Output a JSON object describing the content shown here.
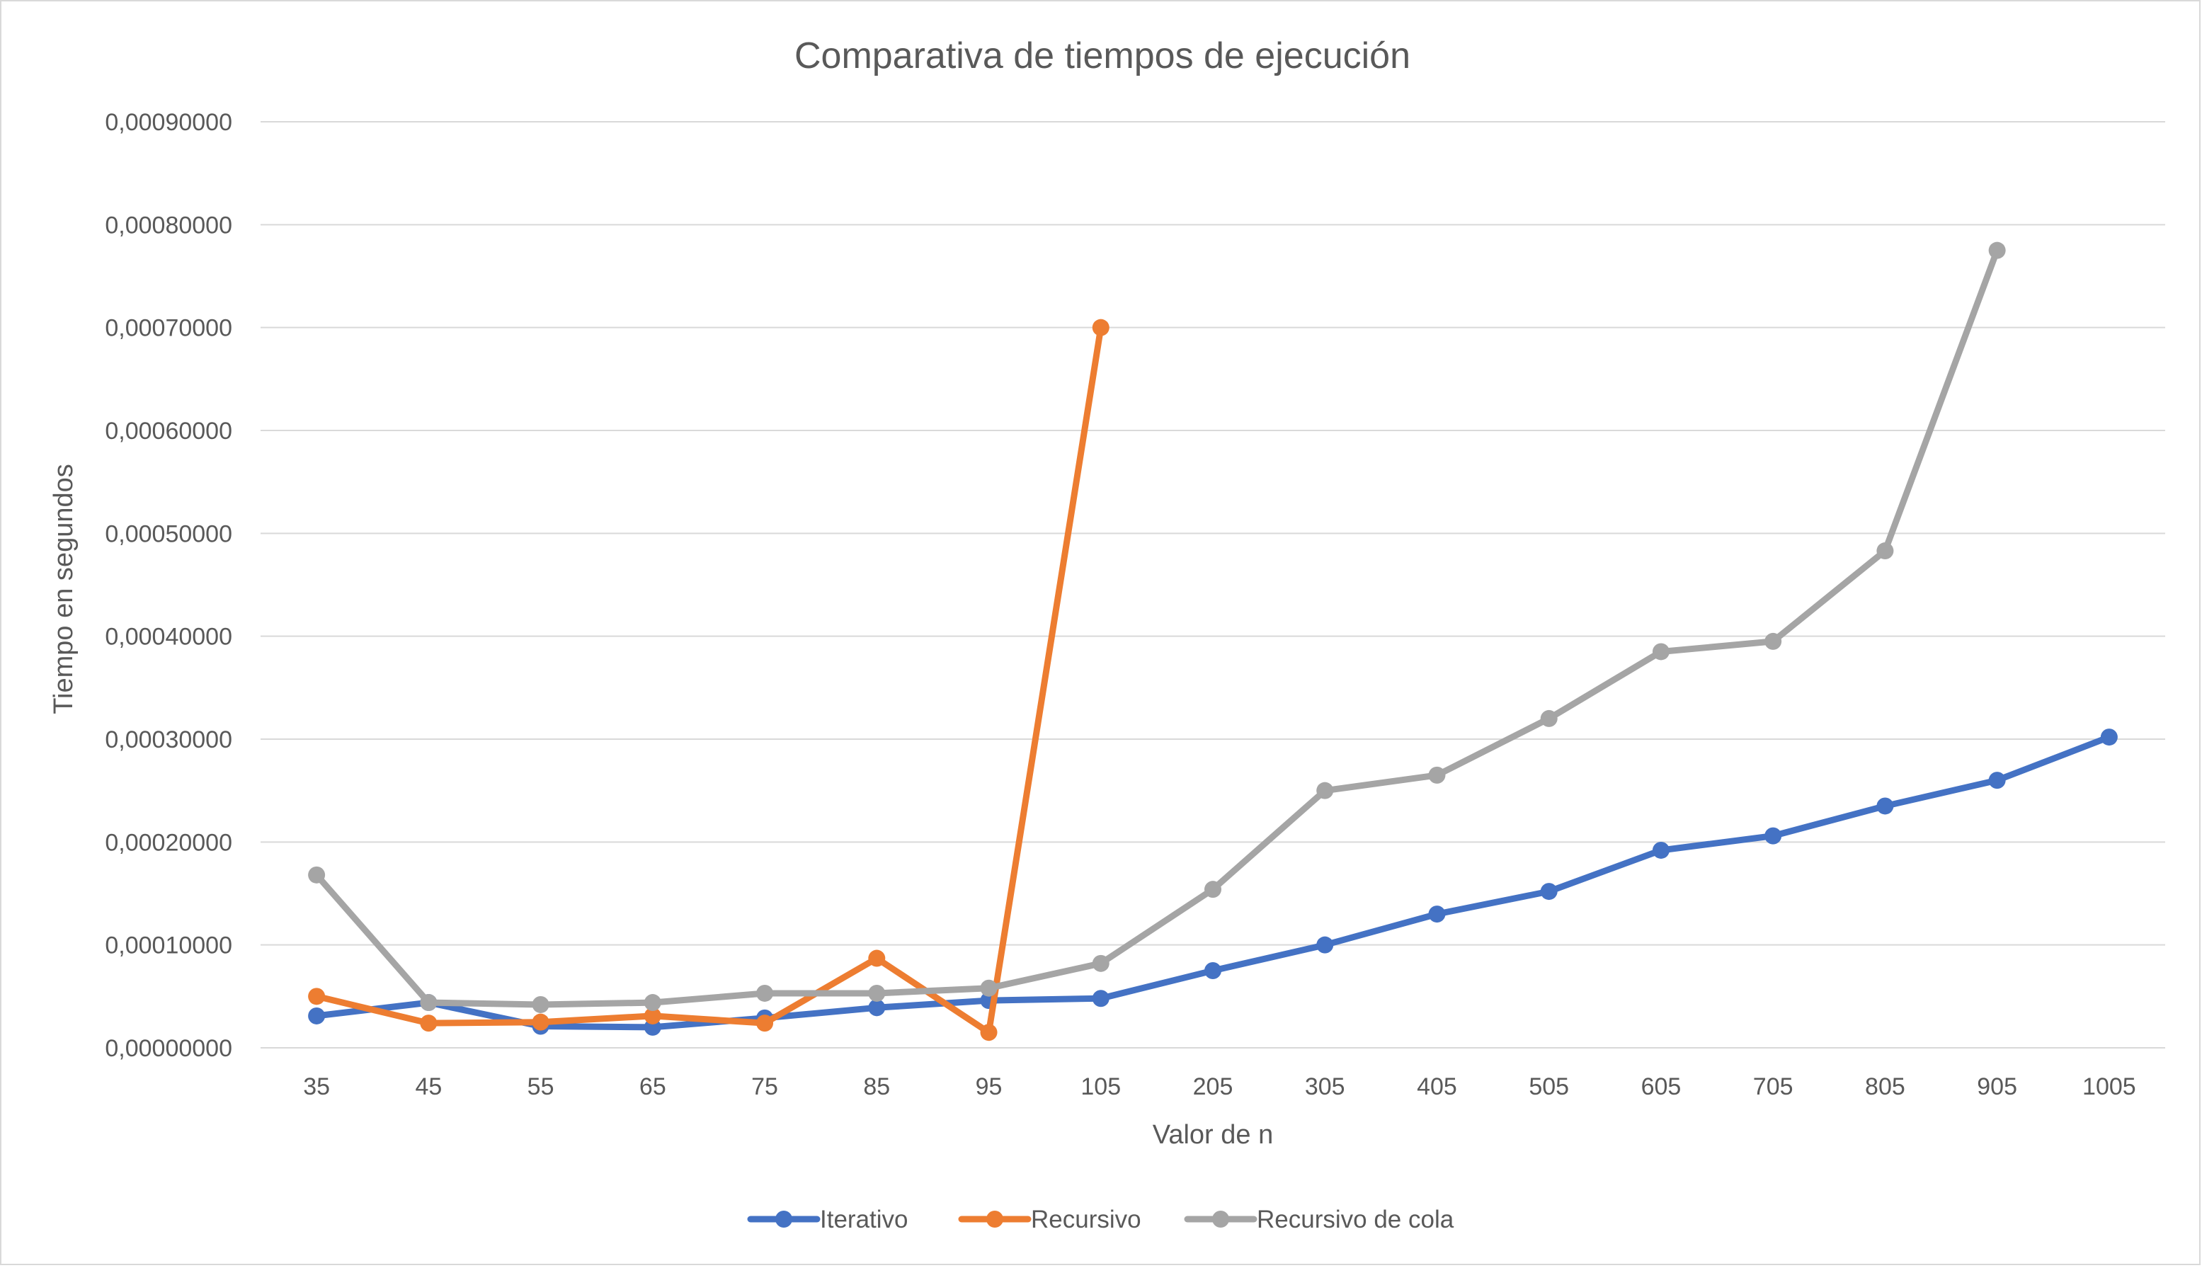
{
  "chart_data": {
    "type": "line",
    "title": "Comparativa de tiempos de ejecución",
    "xlabel": "Valor de n",
    "ylabel": "Tiempo en segundos",
    "categories": [
      "35",
      "45",
      "55",
      "65",
      "75",
      "85",
      "95",
      "105",
      "205",
      "305",
      "405",
      "505",
      "605",
      "705",
      "805",
      "905",
      "1005"
    ],
    "ylim": [
      0,
      0.0009
    ],
    "yticks": [
      0,
      0.0001,
      0.0002,
      0.0003,
      0.0004,
      0.0005,
      0.0006,
      0.0007,
      0.0008,
      0.0009
    ],
    "ytick_labels": [
      "0,00000000",
      "0,00010000",
      "0,00020000",
      "0,00030000",
      "0,00040000",
      "0,00050000",
      "0,00060000",
      "0,00070000",
      "0,00080000",
      "0,00090000"
    ],
    "grid": true,
    "legend_position": "bottom",
    "series": [
      {
        "name": "Iterativo",
        "color": "#4472C4",
        "values": [
          3.1e-05,
          4.4e-05,
          2.1e-05,
          2e-05,
          2.9e-05,
          3.9e-05,
          4.6e-05,
          4.8e-05,
          7.5e-05,
          0.0001,
          0.00013,
          0.000152,
          0.000192,
          0.000206,
          0.000235,
          0.00026,
          0.000302
        ]
      },
      {
        "name": "Recursivo",
        "color": "#ED7D31",
        "values": [
          5e-05,
          2.4e-05,
          2.5e-05,
          3.1e-05,
          2.4e-05,
          8.7e-05,
          1.5e-05,
          0.0007,
          null,
          null,
          null,
          null,
          null,
          null,
          null,
          null,
          null
        ]
      },
      {
        "name": "Recursivo de cola",
        "color": "#A5A5A5",
        "values": [
          0.000168,
          4.4e-05,
          4.2e-05,
          4.4e-05,
          5.3e-05,
          5.3e-05,
          5.8e-05,
          8.2e-05,
          0.000154,
          0.00025,
          0.000265,
          0.00032,
          0.000385,
          0.000395,
          0.000483,
          0.000775,
          null
        ]
      }
    ]
  }
}
